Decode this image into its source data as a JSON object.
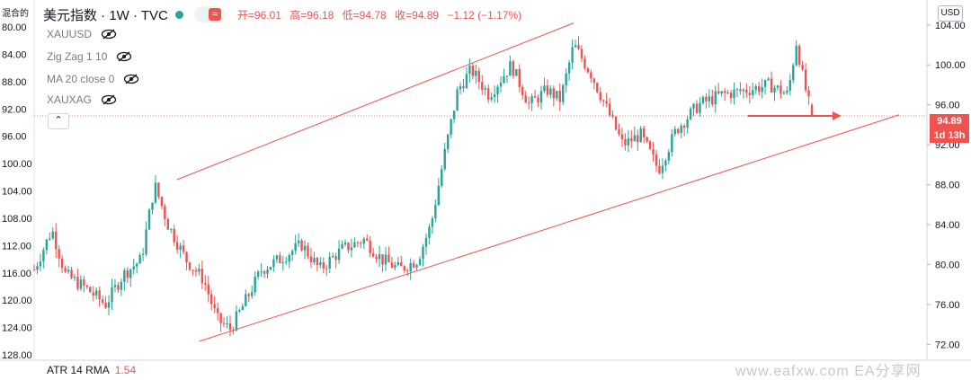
{
  "header": {
    "symbol": "美元指数 · 1W · TVC",
    "status_icon": "≈",
    "ohlc_open": "开=96.01",
    "ohlc_high": "高=96.18",
    "ohlc_low": "低=94.78",
    "ohlc_close": "收=94.89",
    "change": "−1.12 (−1.17%)"
  },
  "indicators": [
    {
      "label": "XAUUSD"
    },
    {
      "label": "Zig Zag 1 10"
    },
    {
      "label": "MA 20 close 0"
    },
    {
      "label": "XAUXAG"
    }
  ],
  "left_scale_title": "混合的",
  "right_scale_badge": "USD",
  "price_tag": "94.89",
  "countdown_tag": "1d 13h",
  "atr_label": "ATR 14 RMA",
  "atr_value": "1.54",
  "watermark": "www.eafxw.com  EA分享网",
  "colors": {
    "up": "#26a69a",
    "down": "#ef5350",
    "channel": "#ef5350"
  },
  "chart_data": {
    "type": "candlestick",
    "symbol": "美元指数",
    "timeframe": "1W",
    "right_axis": {
      "ticks": [
        104.0,
        100.0,
        96.0,
        92.0,
        88.0,
        84.0,
        80.0,
        76.0,
        72.0
      ],
      "range": [
        70.5,
        106.5
      ]
    },
    "left_axis": {
      "ticks": [
        80.0,
        84.0,
        88.0,
        92.0,
        96.0,
        100.0,
        104.0,
        108.0,
        112.0,
        116.0,
        120.0,
        124.0,
        128.0
      ],
      "inverted": true
    },
    "trend_channel": {
      "upper": [
        [
          0.16,
          88.5
        ],
        [
          0.605,
          104.2
        ]
      ],
      "lower": [
        [
          0.185,
          72.3
        ],
        [
          0.97,
          95.0
        ]
      ],
      "horizontal_level": 94.89
    },
    "close_path": [
      [
        0.0,
        79.5
      ],
      [
        0.02,
        83.5
      ],
      [
        0.035,
        79.0
      ],
      [
        0.06,
        77.5
      ],
      [
        0.08,
        76.0
      ],
      [
        0.1,
        79.0
      ],
      [
        0.12,
        80.5
      ],
      [
        0.135,
        88.0
      ],
      [
        0.15,
        84.0
      ],
      [
        0.17,
        80.5
      ],
      [
        0.19,
        78.5
      ],
      [
        0.205,
        74.5
      ],
      [
        0.22,
        73.5
      ],
      [
        0.235,
        76.0
      ],
      [
        0.255,
        79.5
      ],
      [
        0.275,
        80.5
      ],
      [
        0.3,
        82.0
      ],
      [
        0.32,
        79.5
      ],
      [
        0.345,
        81.5
      ],
      [
        0.37,
        82.5
      ],
      [
        0.39,
        80.5
      ],
      [
        0.41,
        79.5
      ],
      [
        0.43,
        80.5
      ],
      [
        0.445,
        84.0
      ],
      [
        0.46,
        91.0
      ],
      [
        0.475,
        97.5
      ],
      [
        0.49,
        99.5
      ],
      [
        0.51,
        97.0
      ],
      [
        0.535,
        100.0
      ],
      [
        0.555,
        96.0
      ],
      [
        0.575,
        97.5
      ],
      [
        0.59,
        96.5
      ],
      [
        0.605,
        102.0
      ],
      [
        0.625,
        99.0
      ],
      [
        0.645,
        95.0
      ],
      [
        0.66,
        92.0
      ],
      [
        0.68,
        93.0
      ],
      [
        0.7,
        89.5
      ],
      [
        0.72,
        93.5
      ],
      [
        0.745,
        96.0
      ],
      [
        0.77,
        97.0
      ],
      [
        0.8,
        97.5
      ],
      [
        0.825,
        98.0
      ],
      [
        0.845,
        97.0
      ],
      [
        0.855,
        102.5
      ],
      [
        0.86,
        99.5
      ],
      [
        0.865,
        97.5
      ],
      [
        0.872,
        94.89
      ]
    ]
  }
}
